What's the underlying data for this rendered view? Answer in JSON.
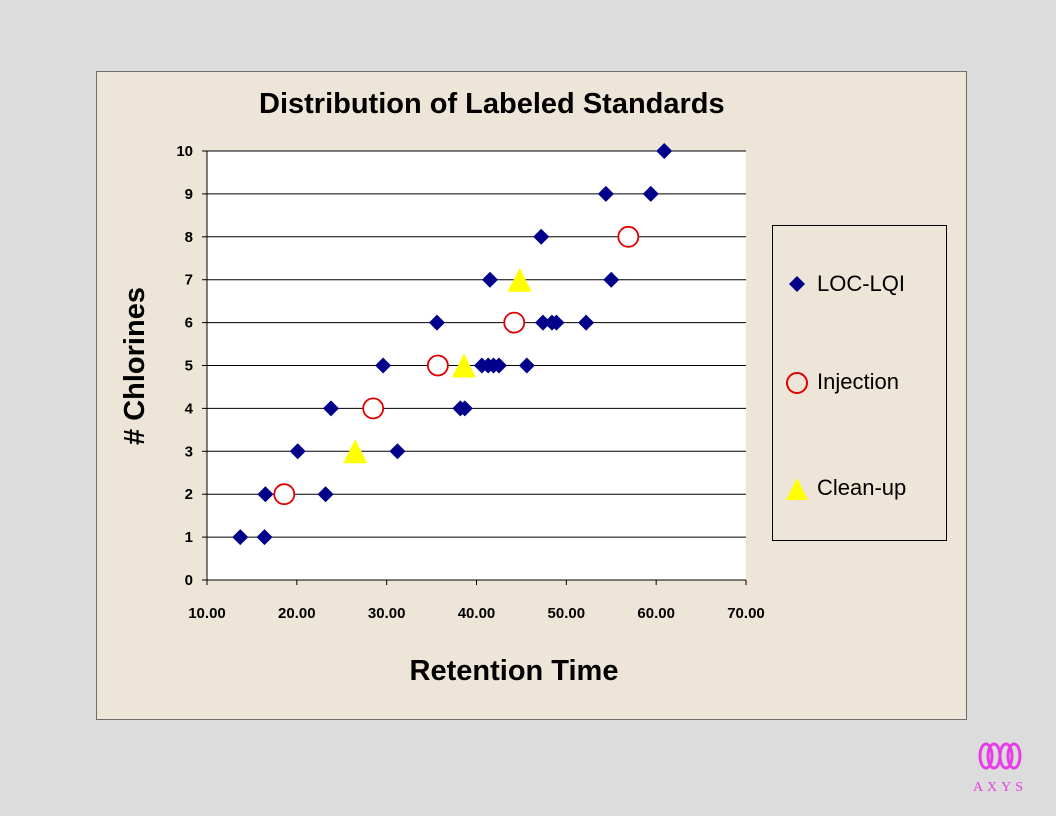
{
  "chart_data": {
    "type": "scatter",
    "title": "Distribution of Labeled Standards",
    "xlabel": "Retention Time",
    "ylabel": "# Chlorines",
    "xlim": [
      10,
      70
    ],
    "ylim": [
      0,
      10
    ],
    "x_ticks": [
      "10.00",
      "20.00",
      "30.00",
      "40.00",
      "50.00",
      "60.00",
      "70.00"
    ],
    "y_ticks": [
      "0",
      "1",
      "2",
      "3",
      "4",
      "5",
      "6",
      "7",
      "8",
      "9",
      "10"
    ],
    "grid": "horizontal",
    "legend_position": "right",
    "series": [
      {
        "name": "LOC-LQI",
        "marker": "diamond",
        "color": "#00008b",
        "points": [
          [
            13.7,
            1
          ],
          [
            16.4,
            1
          ],
          [
            16.5,
            2
          ],
          [
            23.2,
            2
          ],
          [
            20.1,
            3
          ],
          [
            31.2,
            3
          ],
          [
            23.8,
            4
          ],
          [
            38.2,
            4
          ],
          [
            38.7,
            4
          ],
          [
            29.6,
            5
          ],
          [
            40.6,
            5
          ],
          [
            41.3,
            5
          ],
          [
            41.9,
            5
          ],
          [
            42.5,
            5
          ],
          [
            45.6,
            5
          ],
          [
            35.6,
            6
          ],
          [
            47.4,
            6
          ],
          [
            48.4,
            6
          ],
          [
            48.9,
            6
          ],
          [
            52.2,
            6
          ],
          [
            41.5,
            7
          ],
          [
            55.0,
            7
          ],
          [
            47.2,
            8
          ],
          [
            54.4,
            9
          ],
          [
            59.4,
            9
          ],
          [
            60.9,
            10
          ]
        ]
      },
      {
        "name": "Injection",
        "marker": "circle",
        "color": "#e00000",
        "points": [
          [
            18.6,
            2
          ],
          [
            28.5,
            4
          ],
          [
            35.7,
            5
          ],
          [
            44.2,
            6
          ],
          [
            56.9,
            8
          ]
        ]
      },
      {
        "name": "Clean-up",
        "marker": "triangle",
        "color": "#ffff00",
        "points": [
          [
            26.5,
            3
          ],
          [
            38.6,
            5
          ],
          [
            44.8,
            7
          ]
        ]
      }
    ]
  },
  "brand": {
    "text": "AXYS",
    "color": "#e63ee6"
  }
}
